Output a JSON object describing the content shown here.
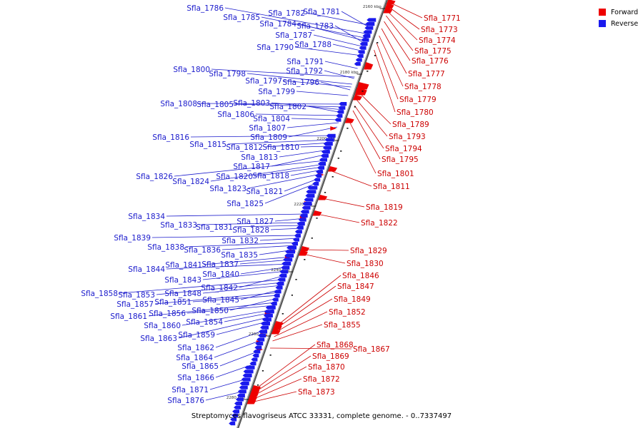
{
  "title": "Streptomyces flavogriseus ATCC 33331, complete genome. - 0..7337497",
  "legend": [
    {
      "label": "Forward",
      "color": "#ee0000"
    },
    {
      "label": "Reverse",
      "color": "#1a1aee"
    }
  ],
  "colors": {
    "forward": "#ee0000",
    "reverse": "#1a1aee",
    "forward_label": "#cc0000",
    "reverse_label": "#1a1acc",
    "axis": "#888888"
  },
  "ticks": [
    "2160 kbp",
    "2180 kbp",
    "2200 kbp",
    "2220 kbp",
    "2240 kbp",
    "2260 kbp",
    "2280 kbp"
  ],
  "forward_genes": [
    "Sfla_1771",
    "Sfla_1773",
    "Sfla_1774",
    "Sfla_1775",
    "Sfla_1776",
    "Sfla_1777",
    "Sfla_1778",
    "Sfla_1779",
    "Sfla_1780",
    "Sfla_1789",
    "Sfla_1793",
    "Sfla_1794",
    "Sfla_1795",
    "Sfla_1801",
    "Sfla_1811",
    "Sfla_1819",
    "Sfla_1822",
    "Sfla_1829",
    "Sfla_1830",
    "Sfla_1846",
    "Sfla_1847",
    "Sfla_1849",
    "Sfla_1852",
    "Sfla_1855",
    "Sfla_1867",
    "Sfla_1868",
    "Sfla_1869",
    "Sfla_1870",
    "Sfla_1872",
    "Sfla_1873"
  ],
  "reverse_genes": [
    "Sfla_1786",
    "Sfla_1782",
    "Sfla_1781",
    "Sfla_1785",
    "Sfla_1784",
    "Sfla_1783",
    "Sfla_1787",
    "Sfla_1788",
    "Sfla_1790",
    "Sfla_1791",
    "Sfla_1800",
    "Sfla_1792",
    "Sfla_1798",
    "Sfla_1797",
    "Sfla_1796",
    "Sfla_1799",
    "Sfla_1808",
    "Sfla_1805",
    "Sfla_1803",
    "Sfla_1802",
    "Sfla_1806",
    "Sfla_1804",
    "Sfla_1807",
    "Sfla_1809",
    "Sfla_1816",
    "Sfla_1815",
    "Sfla_1812",
    "Sfla_1810",
    "Sfla_1813",
    "Sfla_1817",
    "Sfla_1826",
    "Sfla_1824",
    "Sfla_1820",
    "Sfla_1818",
    "Sfla_1823",
    "Sfla_1821",
    "Sfla_1825",
    "Sfla_1834",
    "Sfla_1827",
    "Sfla_1833",
    "Sfla_1831",
    "Sfla_1828",
    "Sfla_1839",
    "Sfla_1832",
    "Sfla_1838",
    "Sfla_1836",
    "Sfla_1835",
    "Sfla_1841",
    "Sfla_1837",
    "Sfla_1844",
    "Sfla_1840",
    "Sfla_1843",
    "Sfla_1842",
    "Sfla_1858",
    "Sfla_1853",
    "Sfla_1848",
    "Sfla_1845",
    "Sfla_1857",
    "Sfla_1851",
    "Sfla_1850",
    "Sfla_1861",
    "Sfla_1856",
    "Sfla_1860",
    "Sfla_1854",
    "Sfla_1863",
    "Sfla_1859",
    "Sfla_1862",
    "Sfla_1864",
    "Sfla_1865",
    "Sfla_1866",
    "Sfla_1871",
    "Sfla_1876"
  ]
}
